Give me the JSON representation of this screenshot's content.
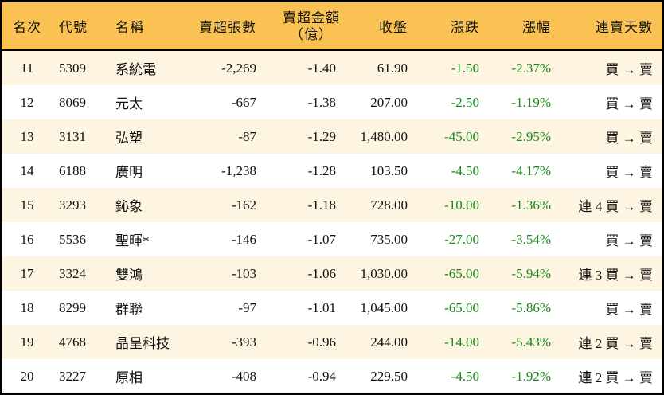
{
  "headers": [
    "名次",
    "代號",
    "名稱",
    "賣超張數",
    "賣超金額",
    "（億）",
    "收盤",
    "漲跌",
    "漲幅",
    "連賣天數"
  ],
  "colors": {
    "header_bg": "#f9c252",
    "odd_row_bg": "#fdf5e1",
    "negative": "#1a8a1a"
  },
  "rows": [
    {
      "rank": "11",
      "code": "5309",
      "name": "系統電",
      "shares": "-2,269",
      "amount": "-1.40",
      "close": "61.90",
      "change": "-1.50",
      "pct": "-2.37%",
      "streak": "買 → 賣"
    },
    {
      "rank": "12",
      "code": "8069",
      "name": "元太",
      "shares": "-667",
      "amount": "-1.38",
      "close": "207.00",
      "change": "-2.50",
      "pct": "-1.19%",
      "streak": "買 → 賣"
    },
    {
      "rank": "13",
      "code": "3131",
      "name": "弘塑",
      "shares": "-87",
      "amount": "-1.29",
      "close": "1,480.00",
      "change": "-45.00",
      "pct": "-2.95%",
      "streak": "買 → 賣"
    },
    {
      "rank": "14",
      "code": "6188",
      "name": "廣明",
      "shares": "-1,238",
      "amount": "-1.28",
      "close": "103.50",
      "change": "-4.50",
      "pct": "-4.17%",
      "streak": "買 → 賣"
    },
    {
      "rank": "15",
      "code": "3293",
      "name": "鈊象",
      "shares": "-162",
      "amount": "-1.18",
      "close": "728.00",
      "change": "-10.00",
      "pct": "-1.36%",
      "streak": "連 4 買 → 賣"
    },
    {
      "rank": "16",
      "code": "5536",
      "name": "聖暉*",
      "shares": "-146",
      "amount": "-1.07",
      "close": "735.00",
      "change": "-27.00",
      "pct": "-3.54%",
      "streak": "買 → 賣"
    },
    {
      "rank": "17",
      "code": "3324",
      "name": "雙鴻",
      "shares": "-103",
      "amount": "-1.06",
      "close": "1,030.00",
      "change": "-65.00",
      "pct": "-5.94%",
      "streak": "連 3 買 → 賣"
    },
    {
      "rank": "18",
      "code": "8299",
      "name": "群聯",
      "shares": "-97",
      "amount": "-1.01",
      "close": "1,045.00",
      "change": "-65.00",
      "pct": "-5.86%",
      "streak": "買 → 賣"
    },
    {
      "rank": "19",
      "code": "4768",
      "name": "晶呈科技",
      "shares": "-393",
      "amount": "-0.96",
      "close": "244.00",
      "change": "-14.00",
      "pct": "-5.43%",
      "streak": "連 2 買 → 賣"
    },
    {
      "rank": "20",
      "code": "3227",
      "name": "原相",
      "shares": "-408",
      "amount": "-0.94",
      "close": "229.50",
      "change": "-4.50",
      "pct": "-1.92%",
      "streak": "連 2 買 → 賣"
    }
  ]
}
